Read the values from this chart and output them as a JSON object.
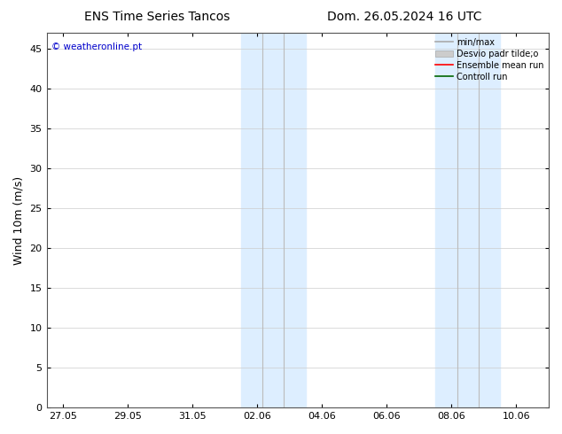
{
  "title_left": "ENS Time Series Tancos",
  "title_right": "Dom. 26.05.2024 16 UTC",
  "ylabel": "Wind 10m (m/s)",
  "watermark": "© weatheronline.pt",
  "watermark_color": "#0000cc",
  "ylim_bottom": 0,
  "ylim_top": 47,
  "yticks": [
    0,
    5,
    10,
    15,
    20,
    25,
    30,
    35,
    40,
    45
  ],
  "xtick_labels": [
    "27.05",
    "29.05",
    "31.05",
    "02.06",
    "04.06",
    "06.06",
    "08.06",
    "10.06"
  ],
  "xtick_day_offsets": [
    0,
    2,
    4,
    6,
    8,
    10,
    12,
    14
  ],
  "xlim_left": -0.5,
  "xlim_right": 15.0,
  "shaded_bands": [
    {
      "xmin": 5.5,
      "xmax": 7.5,
      "color": "#ddeeff"
    },
    {
      "xmin": 11.5,
      "xmax": 13.5,
      "color": "#ddeeff"
    }
  ],
  "vertical_lines": [
    {
      "x": 6.17,
      "color": "#bbbbbb",
      "lw": 0.8
    },
    {
      "x": 6.83,
      "color": "#bbbbbb",
      "lw": 0.8
    },
    {
      "x": 12.17,
      "color": "#bbbbbb",
      "lw": 0.8
    },
    {
      "x": 12.83,
      "color": "#bbbbbb",
      "lw": 0.8
    }
  ],
  "bg_color": "#ffffff",
  "plot_bg_color": "#ffffff",
  "grid_color": "#cccccc",
  "tick_label_fontsize": 8,
  "axis_label_fontsize": 9,
  "title_fontsize": 10,
  "legend_entries": [
    {
      "label": "min/max",
      "color": "#aaaaaa",
      "lw": 1.2,
      "style": "-"
    },
    {
      "label": "Desvio padr tilde;o",
      "color": "#cccccc",
      "lw": 6,
      "style": "-"
    },
    {
      "label": "Ensemble mean run",
      "color": "#ff0000",
      "lw": 1.2,
      "style": "-"
    },
    {
      "label": "Controll run",
      "color": "#006600",
      "lw": 1.2,
      "style": "-"
    }
  ]
}
